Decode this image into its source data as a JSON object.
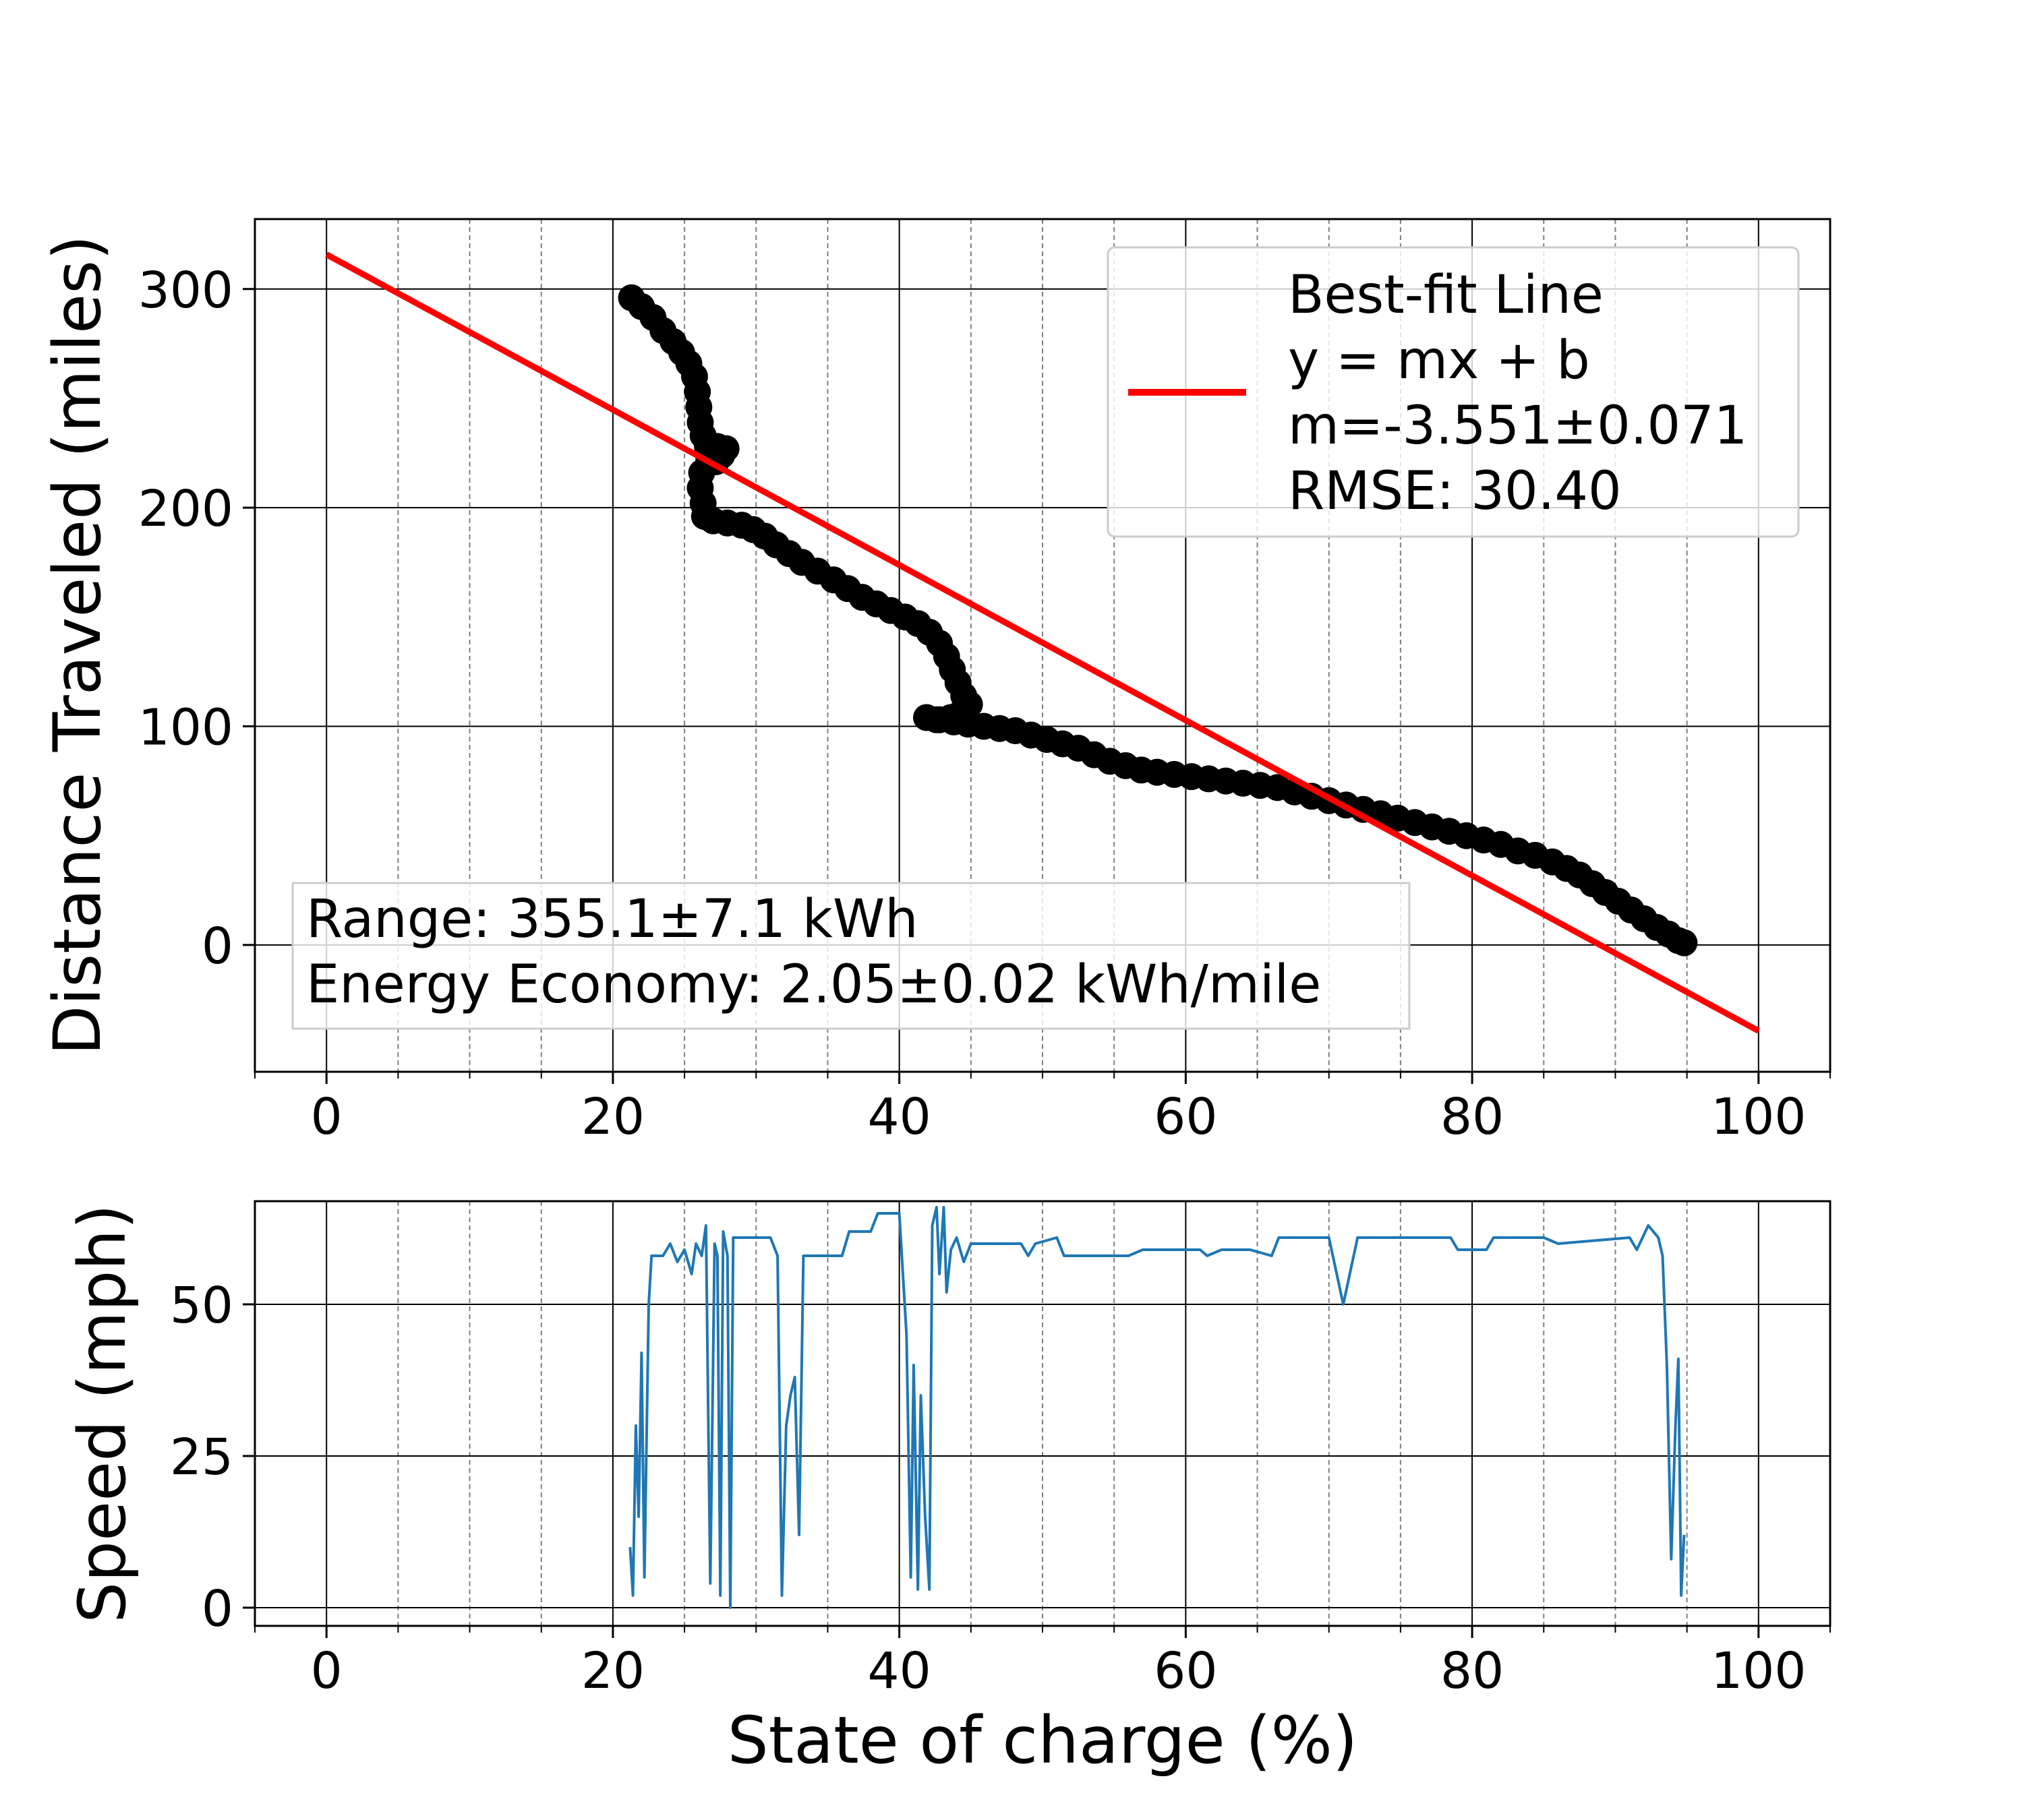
{
  "chart_data": [
    {
      "type": "scatter",
      "name": "distance-vs-soc",
      "xlabel": "",
      "ylabel": "Distance Traveled (miles)",
      "xlim": [
        -5,
        105
      ],
      "ylim": [
        -58,
        332
      ],
      "xticks": [
        0,
        20,
        40,
        60,
        80,
        100
      ],
      "yticks": [
        0,
        100,
        200,
        300
      ],
      "xtick_labels": [
        "0",
        "20",
        "40",
        "60",
        "80",
        "100"
      ],
      "ytick_labels": [
        "0",
        "100",
        "200",
        "300"
      ],
      "grid": true,
      "minor_grid_x": true,
      "legend_placement": "top-right",
      "series": [
        {
          "type": "scatter",
          "color": "#000000",
          "points": [
            [
              21.3,
              296
            ],
            [
              22.0,
              292
            ],
            [
              22.8,
              287
            ],
            [
              23.5,
              281
            ],
            [
              24.2,
              276
            ],
            [
              24.8,
              271
            ],
            [
              25.3,
              266
            ],
            [
              25.7,
              260
            ],
            [
              25.9,
              253
            ],
            [
              26.0,
              246
            ],
            [
              26.1,
              239
            ],
            [
              26.3,
              233
            ],
            [
              26.6,
              228
            ],
            [
              26.9,
              224
            ],
            [
              27.2,
              221
            ],
            [
              27.6,
              224
            ],
            [
              27.9,
              227
            ],
            [
              27.3,
              228
            ],
            [
              26.7,
              222
            ],
            [
              26.2,
              216
            ],
            [
              26.1,
              209
            ],
            [
              26.3,
              202
            ],
            [
              26.4,
              196
            ],
            [
              27.0,
              194
            ],
            [
              28.0,
              193
            ],
            [
              29.0,
              192
            ],
            [
              29.8,
              190
            ],
            [
              30.6,
              187
            ],
            [
              31.4,
              183
            ],
            [
              32.3,
              179
            ],
            [
              33.2,
              175
            ],
            [
              34.3,
              171
            ],
            [
              35.4,
              167
            ],
            [
              36.4,
              163
            ],
            [
              37.4,
              159
            ],
            [
              38.4,
              156
            ],
            [
              39.4,
              153
            ],
            [
              40.4,
              150
            ],
            [
              41.3,
              147
            ],
            [
              42.1,
              143
            ],
            [
              42.8,
              138
            ],
            [
              43.3,
              132
            ],
            [
              43.7,
              126
            ],
            [
              44.1,
              120
            ],
            [
              44.5,
              114
            ],
            [
              44.9,
              110
            ],
            [
              44.3,
              106
            ],
            [
              43.6,
              104
            ],
            [
              42.6,
              103
            ],
            [
              41.9,
              104
            ],
            [
              42.8,
              103
            ],
            [
              43.8,
              102
            ],
            [
              44.8,
              101
            ],
            [
              45.9,
              100
            ],
            [
              47.0,
              99
            ],
            [
              48.1,
              98
            ],
            [
              49.2,
              96
            ],
            [
              50.3,
              94
            ],
            [
              51.4,
              92
            ],
            [
              52.5,
              90
            ],
            [
              53.6,
              87
            ],
            [
              54.7,
              84
            ],
            [
              55.8,
              82
            ],
            [
              56.9,
              80
            ],
            [
              58.0,
              79
            ],
            [
              59.2,
              78
            ],
            [
              60.4,
              77
            ],
            [
              61.6,
              76
            ],
            [
              62.8,
              75
            ],
            [
              64.0,
              74
            ],
            [
              65.2,
              73
            ],
            [
              66.4,
              72
            ],
            [
              67.6,
              70
            ],
            [
              68.8,
              68
            ],
            [
              70.0,
              66
            ],
            [
              71.2,
              64
            ],
            [
              72.4,
              62
            ],
            [
              73.6,
              60
            ],
            [
              74.8,
              58
            ],
            [
              76.0,
              56
            ],
            [
              77.2,
              54
            ],
            [
              78.4,
              52
            ],
            [
              79.6,
              50
            ],
            [
              80.8,
              48
            ],
            [
              82.0,
              46
            ],
            [
              83.2,
              43
            ],
            [
              84.4,
              41
            ],
            [
              85.6,
              38
            ],
            [
              86.6,
              35
            ],
            [
              87.5,
              32
            ],
            [
              88.4,
              28
            ],
            [
              89.3,
              24
            ],
            [
              90.2,
              20
            ],
            [
              91.1,
              16
            ],
            [
              92.0,
              12
            ],
            [
              92.9,
              8
            ],
            [
              93.7,
              5
            ],
            [
              94.4,
              2
            ],
            [
              94.8,
              1
            ]
          ]
        },
        {
          "type": "line",
          "name": "Best-fit Line",
          "color": "#ff0000",
          "points": [
            [
              0,
              315.8
            ],
            [
              100,
              -39.3
            ]
          ]
        }
      ],
      "legend": {
        "lines": [
          "Best-fit Line",
          "y = mx + b",
          "m=-3.551±0.071",
          "RMSE: 30.40"
        ]
      },
      "annotation": {
        "lines": [
          "Range: 355.1±7.1 kWh",
          "Energy Economy: 2.05±0.02 kWh/mile"
        ]
      }
    },
    {
      "type": "line",
      "name": "speed-vs-soc",
      "xlabel": "State of charge (%)",
      "ylabel": "Speed (mph)",
      "xlim": [
        -5,
        105
      ],
      "ylim": [
        -3,
        67
      ],
      "xticks": [
        0,
        20,
        40,
        60,
        80,
        100
      ],
      "yticks": [
        0,
        25,
        50
      ],
      "xtick_labels": [
        "0",
        "20",
        "40",
        "60",
        "80",
        "100"
      ],
      "ytick_labels": [
        "0",
        "25",
        "50"
      ],
      "grid": true,
      "minor_grid_x": true,
      "series": [
        {
          "type": "line",
          "color": "#1f77b4",
          "points": [
            [
              21.2,
              10
            ],
            [
              21.4,
              2
            ],
            [
              21.6,
              30
            ],
            [
              21.8,
              15
            ],
            [
              22.0,
              42
            ],
            [
              22.2,
              5
            ],
            [
              22.5,
              50
            ],
            [
              22.7,
              58
            ],
            [
              23.5,
              58
            ],
            [
              24.0,
              60
            ],
            [
              24.5,
              57
            ],
            [
              25.0,
              59
            ],
            [
              25.5,
              55
            ],
            [
              25.8,
              60
            ],
            [
              26.2,
              58
            ],
            [
              26.5,
              63
            ],
            [
              26.8,
              4
            ],
            [
              27.1,
              60
            ],
            [
              27.3,
              58
            ],
            [
              27.5,
              2
            ],
            [
              27.7,
              62
            ],
            [
              28.0,
              58
            ],
            [
              28.2,
              0
            ],
            [
              28.4,
              61
            ],
            [
              31.0,
              61
            ],
            [
              31.5,
              58
            ],
            [
              31.8,
              2
            ],
            [
              32.1,
              30
            ],
            [
              32.4,
              35
            ],
            [
              32.7,
              38
            ],
            [
              33.0,
              12
            ],
            [
              33.3,
              58
            ],
            [
              36.0,
              58
            ],
            [
              36.5,
              62
            ],
            [
              38.0,
              62
            ],
            [
              38.5,
              65
            ],
            [
              40.0,
              65
            ],
            [
              40.5,
              45
            ],
            [
              40.8,
              5
            ],
            [
              41.0,
              40
            ],
            [
              41.3,
              3
            ],
            [
              41.5,
              35
            ],
            [
              41.8,
              15
            ],
            [
              42.1,
              3
            ],
            [
              42.3,
              63
            ],
            [
              42.6,
              66
            ],
            [
              42.8,
              55
            ],
            [
              43.1,
              66
            ],
            [
              43.3,
              52
            ],
            [
              43.6,
              59
            ],
            [
              44.0,
              61
            ],
            [
              44.5,
              57
            ],
            [
              45.0,
              60
            ],
            [
              48.5,
              60
            ],
            [
              49.0,
              58
            ],
            [
              49.5,
              60
            ],
            [
              51.0,
              61
            ],
            [
              51.5,
              58
            ],
            [
              56.0,
              58
            ],
            [
              57.0,
              59
            ],
            [
              61.0,
              59
            ],
            [
              61.5,
              58
            ],
            [
              62.5,
              59
            ],
            [
              64.5,
              59
            ],
            [
              66.0,
              58
            ],
            [
              66.5,
              61
            ],
            [
              70.0,
              61
            ],
            [
              71.0,
              50
            ],
            [
              72.0,
              61
            ],
            [
              78.5,
              61
            ],
            [
              79.0,
              59
            ],
            [
              81.0,
              59
            ],
            [
              81.5,
              61
            ],
            [
              85.0,
              61
            ],
            [
              86.0,
              60
            ],
            [
              91.0,
              61
            ],
            [
              91.5,
              59
            ],
            [
              92.3,
              63
            ],
            [
              93.0,
              61
            ],
            [
              93.3,
              58
            ],
            [
              93.6,
              40
            ],
            [
              93.9,
              8
            ],
            [
              94.2,
              30
            ],
            [
              94.4,
              41
            ],
            [
              94.6,
              2
            ],
            [
              94.8,
              12
            ]
          ]
        }
      ]
    }
  ]
}
